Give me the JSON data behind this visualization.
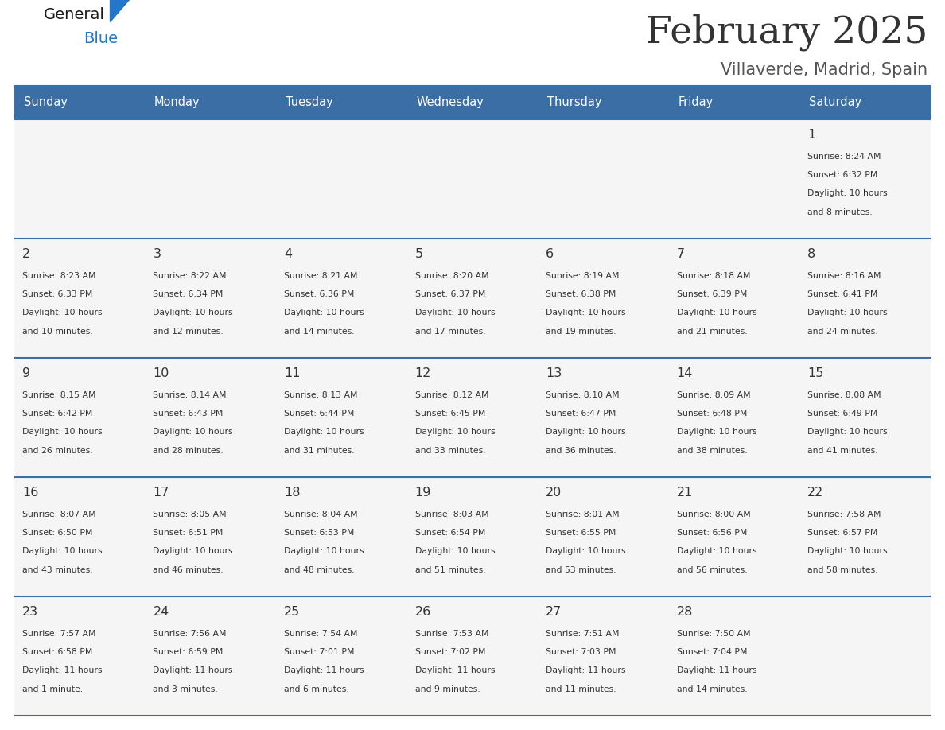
{
  "title": "February 2025",
  "subtitle": "Villaverde, Madrid, Spain",
  "days_of_week": [
    "Sunday",
    "Monday",
    "Tuesday",
    "Wednesday",
    "Thursday",
    "Friday",
    "Saturday"
  ],
  "header_bg": "#3a6ea5",
  "header_text_color": "#ffffff",
  "cell_bg": "#f5f5f5",
  "line_color": "#3a6ea5",
  "text_color": "#333333",
  "title_color": "#333333",
  "subtitle_color": "#555555",
  "calendar_data": [
    [
      null,
      null,
      null,
      null,
      null,
      null,
      {
        "day": 1,
        "sunrise": "8:24 AM",
        "sunset": "6:32 PM",
        "daylight_hours": 10,
        "daylight_minutes": 8
      }
    ],
    [
      {
        "day": 2,
        "sunrise": "8:23 AM",
        "sunset": "6:33 PM",
        "daylight_hours": 10,
        "daylight_minutes": 10
      },
      {
        "day": 3,
        "sunrise": "8:22 AM",
        "sunset": "6:34 PM",
        "daylight_hours": 10,
        "daylight_minutes": 12
      },
      {
        "day": 4,
        "sunrise": "8:21 AM",
        "sunset": "6:36 PM",
        "daylight_hours": 10,
        "daylight_minutes": 14
      },
      {
        "day": 5,
        "sunrise": "8:20 AM",
        "sunset": "6:37 PM",
        "daylight_hours": 10,
        "daylight_minutes": 17
      },
      {
        "day": 6,
        "sunrise": "8:19 AM",
        "sunset": "6:38 PM",
        "daylight_hours": 10,
        "daylight_minutes": 19
      },
      {
        "day": 7,
        "sunrise": "8:18 AM",
        "sunset": "6:39 PM",
        "daylight_hours": 10,
        "daylight_minutes": 21
      },
      {
        "day": 8,
        "sunrise": "8:16 AM",
        "sunset": "6:41 PM",
        "daylight_hours": 10,
        "daylight_minutes": 24
      }
    ],
    [
      {
        "day": 9,
        "sunrise": "8:15 AM",
        "sunset": "6:42 PM",
        "daylight_hours": 10,
        "daylight_minutes": 26
      },
      {
        "day": 10,
        "sunrise": "8:14 AM",
        "sunset": "6:43 PM",
        "daylight_hours": 10,
        "daylight_minutes": 28
      },
      {
        "day": 11,
        "sunrise": "8:13 AM",
        "sunset": "6:44 PM",
        "daylight_hours": 10,
        "daylight_minutes": 31
      },
      {
        "day": 12,
        "sunrise": "8:12 AM",
        "sunset": "6:45 PM",
        "daylight_hours": 10,
        "daylight_minutes": 33
      },
      {
        "day": 13,
        "sunrise": "8:10 AM",
        "sunset": "6:47 PM",
        "daylight_hours": 10,
        "daylight_minutes": 36
      },
      {
        "day": 14,
        "sunrise": "8:09 AM",
        "sunset": "6:48 PM",
        "daylight_hours": 10,
        "daylight_minutes": 38
      },
      {
        "day": 15,
        "sunrise": "8:08 AM",
        "sunset": "6:49 PM",
        "daylight_hours": 10,
        "daylight_minutes": 41
      }
    ],
    [
      {
        "day": 16,
        "sunrise": "8:07 AM",
        "sunset": "6:50 PM",
        "daylight_hours": 10,
        "daylight_minutes": 43
      },
      {
        "day": 17,
        "sunrise": "8:05 AM",
        "sunset": "6:51 PM",
        "daylight_hours": 10,
        "daylight_minutes": 46
      },
      {
        "day": 18,
        "sunrise": "8:04 AM",
        "sunset": "6:53 PM",
        "daylight_hours": 10,
        "daylight_minutes": 48
      },
      {
        "day": 19,
        "sunrise": "8:03 AM",
        "sunset": "6:54 PM",
        "daylight_hours": 10,
        "daylight_minutes": 51
      },
      {
        "day": 20,
        "sunrise": "8:01 AM",
        "sunset": "6:55 PM",
        "daylight_hours": 10,
        "daylight_minutes": 53
      },
      {
        "day": 21,
        "sunrise": "8:00 AM",
        "sunset": "6:56 PM",
        "daylight_hours": 10,
        "daylight_minutes": 56
      },
      {
        "day": 22,
        "sunrise": "7:58 AM",
        "sunset": "6:57 PM",
        "daylight_hours": 10,
        "daylight_minutes": 58
      }
    ],
    [
      {
        "day": 23,
        "sunrise": "7:57 AM",
        "sunset": "6:58 PM",
        "daylight_hours": 11,
        "daylight_minutes": 1
      },
      {
        "day": 24,
        "sunrise": "7:56 AM",
        "sunset": "6:59 PM",
        "daylight_hours": 11,
        "daylight_minutes": 3
      },
      {
        "day": 25,
        "sunrise": "7:54 AM",
        "sunset": "7:01 PM",
        "daylight_hours": 11,
        "daylight_minutes": 6
      },
      {
        "day": 26,
        "sunrise": "7:53 AM",
        "sunset": "7:02 PM",
        "daylight_hours": 11,
        "daylight_minutes": 9
      },
      {
        "day": 27,
        "sunrise": "7:51 AM",
        "sunset": "7:03 PM",
        "daylight_hours": 11,
        "daylight_minutes": 11
      },
      {
        "day": 28,
        "sunrise": "7:50 AM",
        "sunset": "7:04 PM",
        "daylight_hours": 11,
        "daylight_minutes": 14
      },
      null
    ]
  ],
  "logo_text_general": "General",
  "logo_text_blue": "Blue",
  "logo_color_general": "#1a1a1a",
  "logo_color_blue": "#2277cc",
  "logo_triangle_color": "#2277cc"
}
